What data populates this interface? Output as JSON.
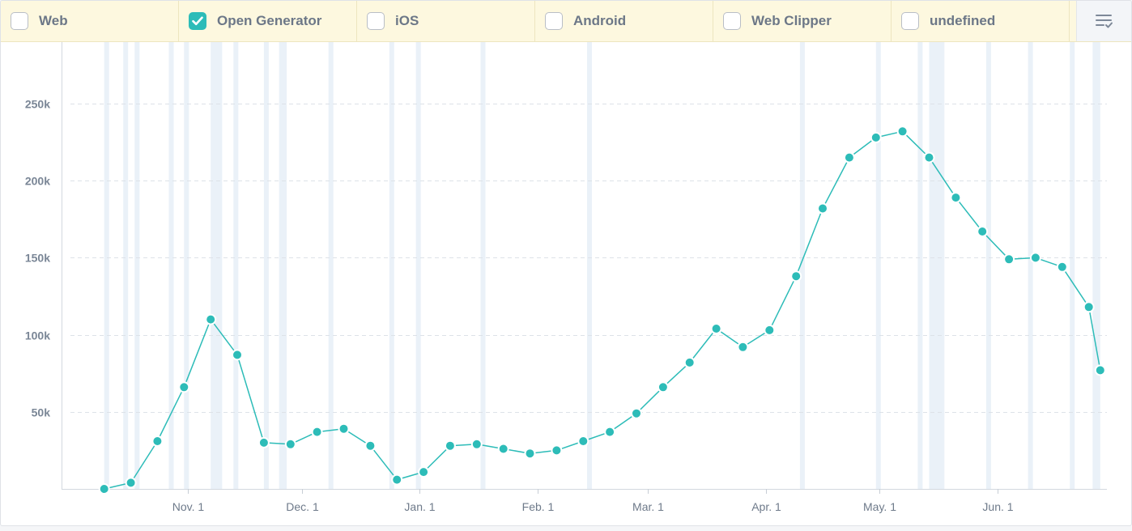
{
  "filters": [
    {
      "label": "Web",
      "checked": false
    },
    {
      "label": "Open Generator",
      "checked": true
    },
    {
      "label": "iOS",
      "checked": false
    },
    {
      "label": "Android",
      "checked": false
    },
    {
      "label": "Web Clipper",
      "checked": false
    },
    {
      "label": "undefined",
      "checked": false
    }
  ],
  "menu_icon": "list-check-icon",
  "colors": {
    "series": "#2dbcb8",
    "checkbox_checked": "#2dbcb8",
    "filter_bar_bg": "#fdf8df",
    "weekend_band": "#eaf1f8"
  },
  "chart_data": {
    "type": "line",
    "title": "",
    "xlabel": "",
    "ylabel": "",
    "ylim": [
      0,
      280000
    ],
    "y_ticks": [
      50000,
      100000,
      150000,
      200000,
      250000
    ],
    "y_tick_labels": [
      "50k",
      "100k",
      "150k",
      "200k",
      "250k"
    ],
    "x_tick_dates": [
      "2015-11-01",
      "2015-12-01",
      "2016-01-01",
      "2016-02-01",
      "2016-03-01",
      "2016-04-01",
      "2016-05-01",
      "2016-06-01"
    ],
    "x_tick_labels": [
      "Nov. 1",
      "Dec. 1",
      "Jan. 1",
      "Feb. 1",
      "Mar. 1",
      "Apr. 1",
      "May. 1",
      "Jun. 1"
    ],
    "xlim": [
      "2015-10-04",
      "2016-06-30"
    ],
    "grid": true,
    "series": [
      {
        "x": [
          "2015-10-10",
          "2015-10-17",
          "2015-10-24",
          "2015-10-31",
          "2015-11-07",
          "2015-11-14",
          "2015-11-21",
          "2015-11-28",
          "2015-12-05",
          "2015-12-12",
          "2015-12-19",
          "2015-12-26",
          "2016-01-02",
          "2016-01-09",
          "2016-01-16",
          "2016-01-23",
          "2016-01-30",
          "2016-02-06",
          "2016-02-13",
          "2016-02-20",
          "2016-02-27",
          "2016-03-05",
          "2016-03-12",
          "2016-03-19",
          "2016-03-26",
          "2016-04-02",
          "2016-04-09",
          "2016-04-16",
          "2016-04-23",
          "2016-04-30",
          "2016-05-07",
          "2016-05-14",
          "2016-05-21",
          "2016-05-28",
          "2016-06-04",
          "2016-06-11",
          "2016-06-18",
          "2016-06-25"
        ],
        "values": [
          0,
          4000,
          31000,
          66000,
          110000,
          87000,
          30000,
          29000,
          37000,
          39000,
          28000,
          6000,
          11000,
          28000,
          29000,
          26000,
          23000,
          25000,
          31000,
          37000,
          49000,
          66000,
          82000,
          104000,
          92000,
          103000,
          138000,
          182000,
          215000,
          228000,
          232000,
          215000,
          189000,
          167000,
          149000,
          150000,
          144000,
          118000
        ]
      },
      {
        "x": [
          "2016-06-28"
        ],
        "values": [
          77000
        ]
      }
    ],
    "weekend_bands": [
      [
        "2015-10-10",
        "2015-10-11"
      ],
      [
        "2015-10-15",
        "2015-10-16"
      ],
      [
        "2015-10-18",
        "2015-10-19"
      ],
      [
        "2015-10-27",
        "2015-10-28"
      ],
      [
        "2015-10-31",
        "2015-11-01"
      ],
      [
        "2015-11-07",
        "2015-11-10"
      ],
      [
        "2015-11-13",
        "2015-11-14"
      ],
      [
        "2015-11-21",
        "2015-11-22"
      ],
      [
        "2015-11-25",
        "2015-11-27"
      ],
      [
        "2015-12-08",
        "2015-12-09"
      ],
      [
        "2015-12-24",
        "2015-12-25"
      ],
      [
        "2015-12-31",
        "2016-01-01"
      ],
      [
        "2016-01-17",
        "2016-01-18"
      ],
      [
        "2016-02-14",
        "2016-02-15"
      ],
      [
        "2016-04-10",
        "2016-04-11"
      ],
      [
        "2016-04-30",
        "2016-05-01"
      ],
      [
        "2016-05-11",
        "2016-05-12"
      ],
      [
        "2016-05-14",
        "2016-05-18"
      ],
      [
        "2016-05-29",
        "2016-05-30"
      ],
      [
        "2016-06-09",
        "2016-06-10"
      ],
      [
        "2016-06-20",
        "2016-06-21"
      ],
      [
        "2016-06-26",
        "2016-06-28"
      ]
    ]
  }
}
